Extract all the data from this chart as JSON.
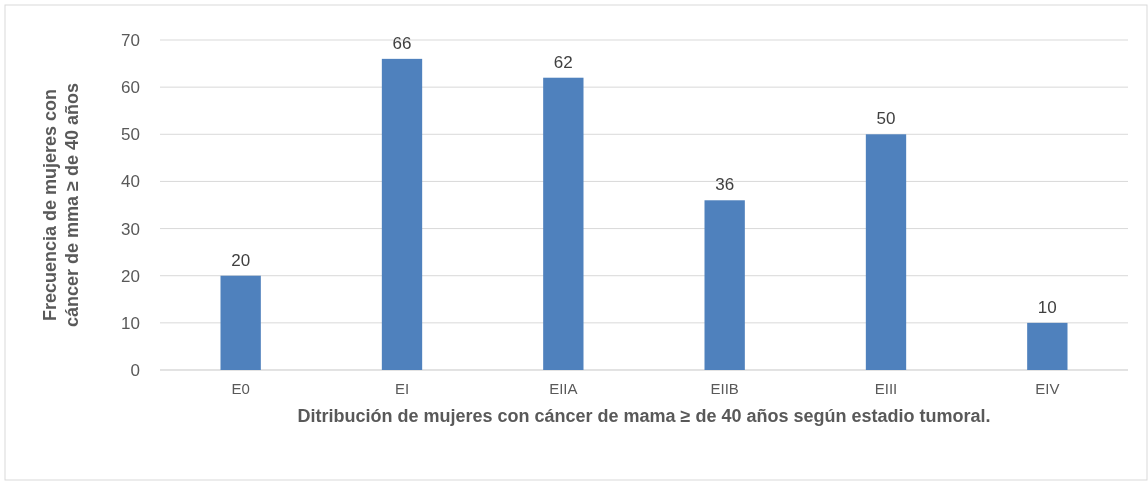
{
  "chart_data": {
    "type": "bar",
    "categories": [
      "E0",
      "EI",
      "EIIA",
      "EIIB",
      "EIII",
      "EIV"
    ],
    "values": [
      20,
      66,
      62,
      36,
      50,
      10
    ],
    "color": "#4f81bd",
    "ylabel": "Frecuencia de mujeres con cáncer de mma ≥ de 40 años",
    "xlabel": "Ditribución de mujeres con cáncer de mama ≥ de 40 años según estadio tumoral.",
    "ylim": [
      0,
      70
    ],
    "yticks": [
      0,
      10,
      20,
      30,
      40,
      50,
      60,
      70
    ],
    "grid": "y",
    "data_labels": true
  }
}
